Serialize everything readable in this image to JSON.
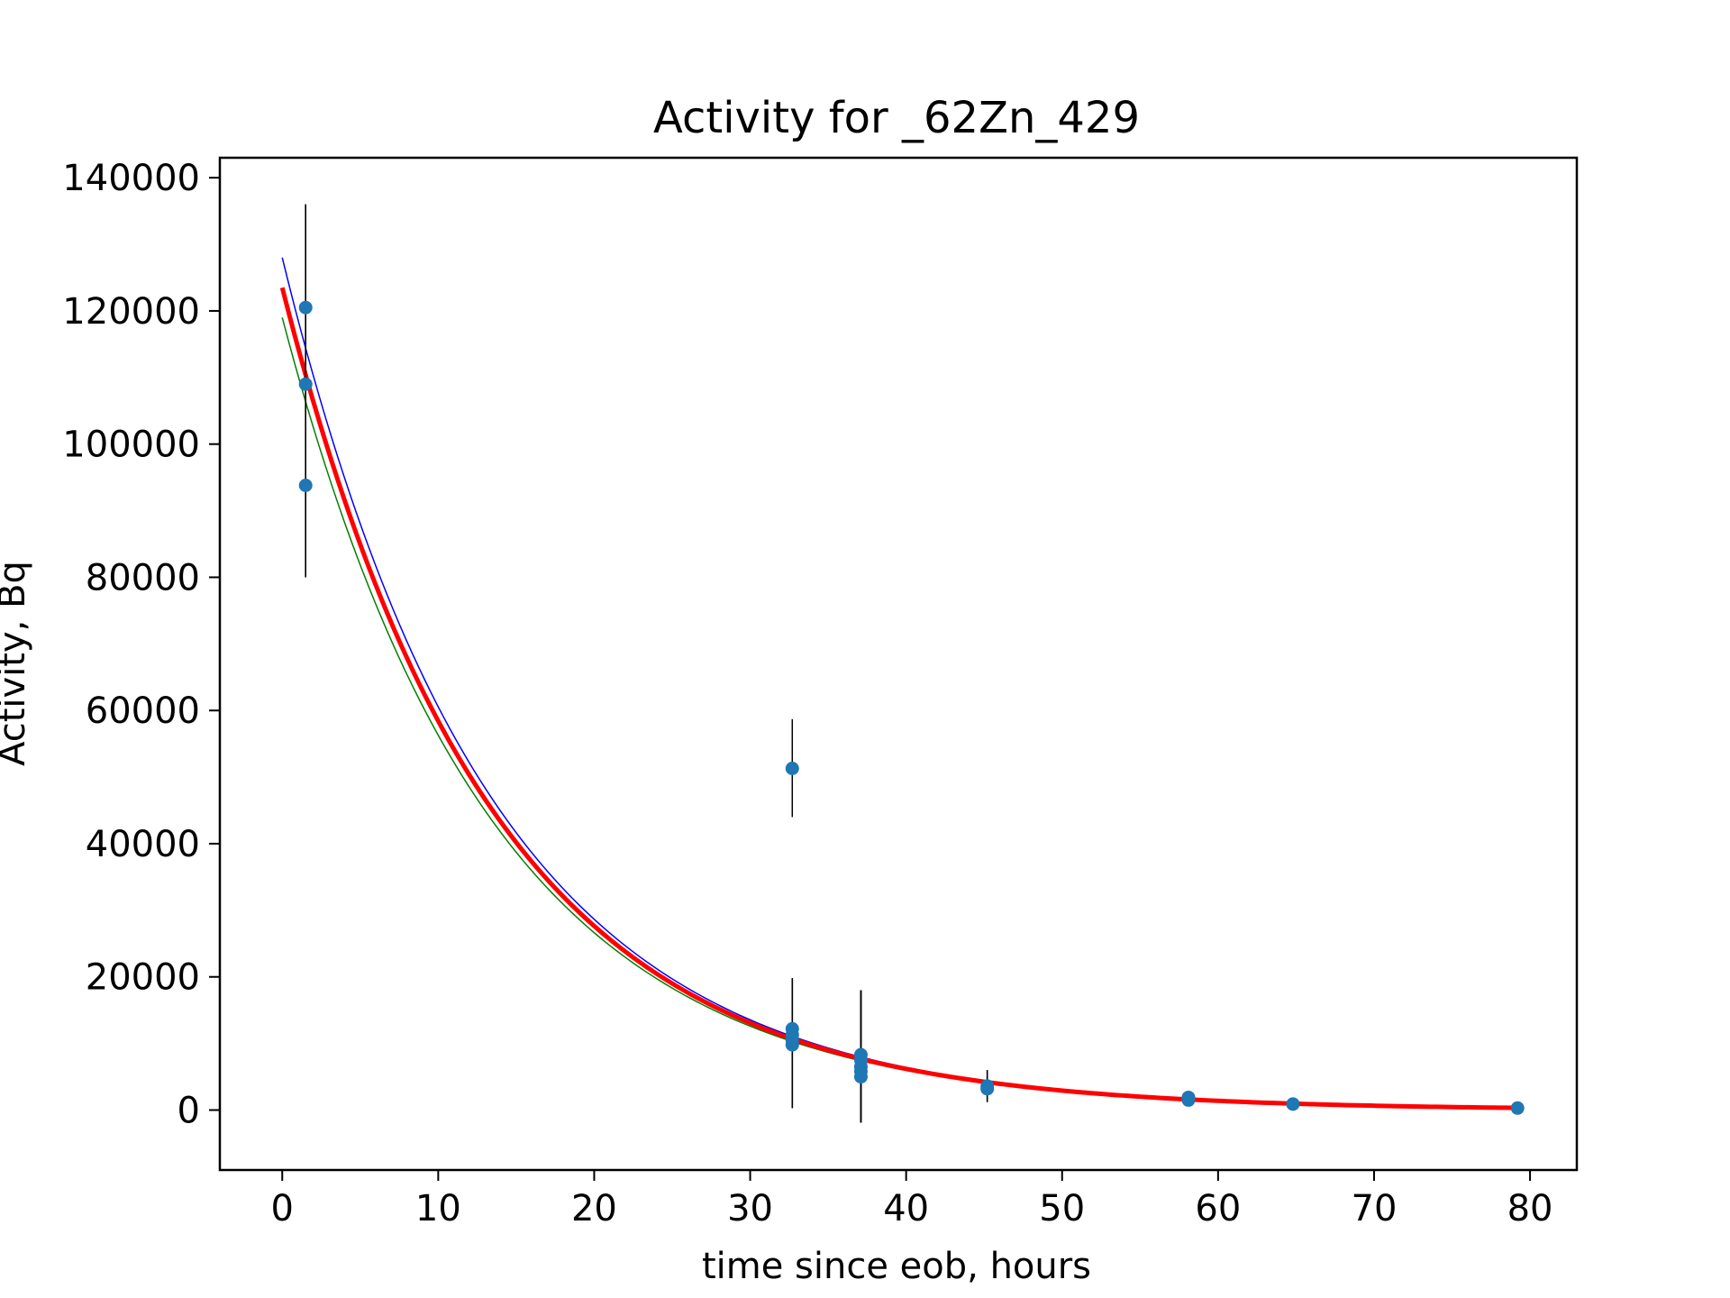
{
  "chart_data": {
    "type": "scatter",
    "title": "Activity for _62Zn_429",
    "xlabel": "time since eob, hours",
    "ylabel": "Activity, Bq",
    "xlim": [
      -4,
      83
    ],
    "ylim": [
      -9000,
      143000
    ],
    "grid": false,
    "x_ticks": [
      0,
      10,
      20,
      30,
      40,
      50,
      60,
      70,
      80
    ],
    "y_ticks": [
      0,
      20000,
      40000,
      60000,
      80000,
      100000,
      120000,
      140000
    ],
    "x_tick_labels": [
      "0",
      "10",
      "20",
      "30",
      "40",
      "50",
      "60",
      "70",
      "80"
    ],
    "y_tick_labels": [
      "0",
      "20000",
      "40000",
      "60000",
      "80000",
      "100000",
      "120000",
      "140000"
    ],
    "points": [
      {
        "x": 1.5,
        "y": 120500,
        "err_low": 80000,
        "err_high": 136000
      },
      {
        "x": 1.5,
        "y": 109000,
        "err_low": 80000,
        "err_high": 136000
      },
      {
        "x": 1.5,
        "y": 93800,
        "err_low": 80000,
        "err_high": 136000
      },
      {
        "x": 32.7,
        "y": 51300,
        "err_low": 44000,
        "err_high": 58700
      },
      {
        "x": 32.7,
        "y": 12200,
        "err_low": 300,
        "err_high": 19800
      },
      {
        "x": 32.7,
        "y": 11300,
        "err_low": 300,
        "err_high": 19800
      },
      {
        "x": 32.7,
        "y": 10500,
        "err_low": 300,
        "err_high": 19800
      },
      {
        "x": 32.7,
        "y": 9800,
        "err_low": 300,
        "err_high": 19800
      },
      {
        "x": 37.1,
        "y": 8300,
        "err_low": -1900,
        "err_high": 18000
      },
      {
        "x": 37.1,
        "y": 7500,
        "err_low": -1900,
        "err_high": 18000
      },
      {
        "x": 37.1,
        "y": 6500,
        "err_low": -1900,
        "err_high": 18000
      },
      {
        "x": 37.1,
        "y": 5800,
        "err_low": -1900,
        "err_high": 18000
      },
      {
        "x": 37.1,
        "y": 5000,
        "err_low": -1900,
        "err_high": 18000
      },
      {
        "x": 45.2,
        "y": 3600,
        "err_low": 1200,
        "err_high": 6000
      },
      {
        "x": 45.2,
        "y": 3200,
        "err_low": 1200,
        "err_high": 6000
      },
      {
        "x": 58.1,
        "y": 1900,
        "err_low": 1000,
        "err_high": 2600
      },
      {
        "x": 58.1,
        "y": 1500,
        "err_low": 1000,
        "err_high": 2600
      },
      {
        "x": 64.8,
        "y": 900,
        "err_low": 400,
        "err_high": 1300
      },
      {
        "x": 79.2,
        "y": 300,
        "err_low": 100,
        "err_high": 500
      }
    ],
    "curves": [
      {
        "color": "#0000ff",
        "a0": 128000,
        "half_life": 9.26,
        "x_start": 0,
        "x_end": 79.2
      },
      {
        "color": "#008000",
        "a0": 119000,
        "half_life": 9.26,
        "x_start": 0,
        "x_end": 79.2
      },
      {
        "color": "#ff0000",
        "a0": 123500,
        "half_life": 9.26,
        "x_start": 0,
        "x_end": 79.2
      }
    ],
    "colors": {
      "points": "#1f77b4",
      "errorbars": "#000000",
      "axes": "#000000"
    }
  }
}
